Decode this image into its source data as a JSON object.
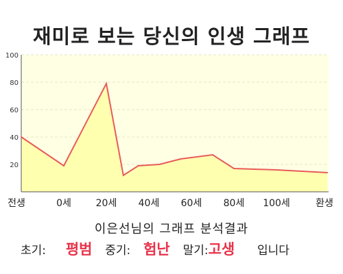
{
  "title": "재미로 보는 당신의 인생 그래프",
  "subtitle": "이은선님의 그래프 분석결과",
  "summary": {
    "early_label": "초기:",
    "early_value": "평범",
    "middle_label": "중기:",
    "middle_value": "험난",
    "late_label": "말기:",
    "late_value": "고생",
    "suffix": "입니다"
  },
  "colors": {
    "plot_background": "#ffffe4",
    "area_fill": "#ffffb0",
    "line": "#e85a5a",
    "accent_text": "#e8334a"
  },
  "chart_data": {
    "type": "area",
    "title": "재미로 보는 당신의 인생 그래프",
    "xlabel": "",
    "ylabel": "",
    "ylim": [
      0,
      100
    ],
    "yticks": [
      20,
      40,
      60,
      80,
      100
    ],
    "xticks": [
      "전생",
      "0세",
      "20세",
      "40세",
      "60세",
      "80세",
      "100세",
      "환생"
    ],
    "grid": true,
    "points": [
      {
        "x": "전생",
        "y": 40
      },
      {
        "x": "0세",
        "y": 19
      },
      {
        "x": "20세",
        "y": 79
      },
      {
        "x": "28세",
        "y": 12
      },
      {
        "x": "35세",
        "y": 19
      },
      {
        "x": "45세",
        "y": 20
      },
      {
        "x": "55세",
        "y": 24
      },
      {
        "x": "70세",
        "y": 27
      },
      {
        "x": "80세",
        "y": 17
      },
      {
        "x": "100세",
        "y": 16
      },
      {
        "x": "환생",
        "y": 14
      }
    ]
  }
}
